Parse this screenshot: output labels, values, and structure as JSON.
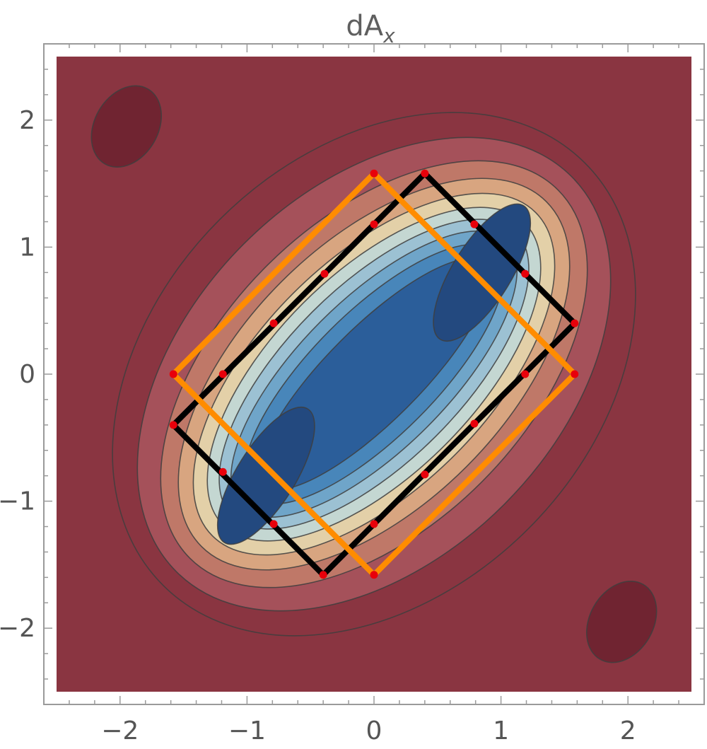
{
  "chart_data": {
    "type": "contour",
    "title_main": "dA",
    "title_sub": "x",
    "xlim": [
      -2.5,
      2.5
    ],
    "ylim": [
      -2.5,
      2.5
    ],
    "x_ticks": [
      {
        "value": -2,
        "label": "−2"
      },
      {
        "value": -1,
        "label": "−1"
      },
      {
        "value": 0,
        "label": "0"
      },
      {
        "value": 1,
        "label": "1"
      },
      {
        "value": 2,
        "label": "2"
      }
    ],
    "y_ticks": [
      {
        "value": -2,
        "label": "−2"
      },
      {
        "value": -1,
        "label": "−1"
      },
      {
        "value": 0,
        "label": "0"
      },
      {
        "value": 1,
        "label": "1"
      },
      {
        "value": 2,
        "label": "2"
      }
    ],
    "colormap": [
      "#702431",
      "#8a3541",
      "#a5515a",
      "#bf7868",
      "#d8a580",
      "#e3d0a8",
      "#c4d7d2",
      "#9cc1d3",
      "#6fa5c9",
      "#4886ba",
      "#2b5e9a",
      "#23497f"
    ],
    "contour_background": "#8a3541",
    "contours": [
      {
        "a": 2.35,
        "b": 1.72,
        "level": 1
      },
      {
        "a": 2.2,
        "b": 1.45,
        "level": 2
      },
      {
        "a": 2.05,
        "b": 1.2,
        "level": 3
      },
      {
        "a": 1.92,
        "b": 1.03,
        "level": 4
      },
      {
        "a": 1.8,
        "b": 0.9,
        "level": 5
      },
      {
        "a": 1.68,
        "b": 0.79,
        "level": 6
      },
      {
        "a": 1.58,
        "b": 0.69,
        "level": 7
      },
      {
        "a": 1.48,
        "b": 0.59,
        "level": 8
      },
      {
        "a": 1.36,
        "b": 0.49,
        "level": 9
      },
      {
        "a": 1.23,
        "b": 0.37,
        "level": 10
      }
    ],
    "minima": [
      {
        "cx": 0.85,
        "cy": 0.8,
        "a": 0.62,
        "b": 0.23,
        "level": 11
      },
      {
        "cx": -0.85,
        "cy": -0.8,
        "a": 0.62,
        "b": 0.23,
        "level": 11
      }
    ],
    "corner_maxima": [
      {
        "cx": -1.95,
        "cy": 1.95,
        "a": 0.34,
        "b": 0.25,
        "level": 0
      },
      {
        "cx": 1.95,
        "cy": -1.95,
        "a": 0.34,
        "b": 0.25,
        "level": 0
      }
    ],
    "polygons": [
      {
        "name": "black-rectangle",
        "color": "#000000",
        "points": [
          [
            0.4,
            1.58
          ],
          [
            1.58,
            0.4
          ],
          [
            -0.4,
            -1.58
          ],
          [
            -1.58,
            -0.4
          ]
        ]
      },
      {
        "name": "orange-square",
        "color": "#ff8c00",
        "points": [
          [
            0,
            1.58
          ],
          [
            1.58,
            0
          ],
          [
            0,
            -1.58
          ],
          [
            -1.58,
            0
          ]
        ]
      }
    ],
    "points": {
      "color": "#e8000b",
      "xy": [
        [
          0.4,
          1.58
        ],
        [
          1.58,
          0.4
        ],
        [
          -0.4,
          -1.58
        ],
        [
          -1.58,
          -0.4
        ],
        [
          0,
          1.58
        ],
        [
          1.58,
          0
        ],
        [
          0,
          -1.58
        ],
        [
          -1.58,
          0
        ],
        [
          0,
          1.18
        ],
        [
          -0.39,
          0.79
        ],
        [
          -0.79,
          0.4
        ],
        [
          -1.19,
          0
        ],
        [
          0.79,
          1.18
        ],
        [
          1.19,
          0.79
        ],
        [
          1.19,
          0
        ],
        [
          0.79,
          -0.39
        ],
        [
          0.4,
          -0.79
        ],
        [
          0,
          -1.18
        ],
        [
          -1.19,
          -0.77
        ],
        [
          -0.79,
          -1.18
        ]
      ]
    }
  }
}
